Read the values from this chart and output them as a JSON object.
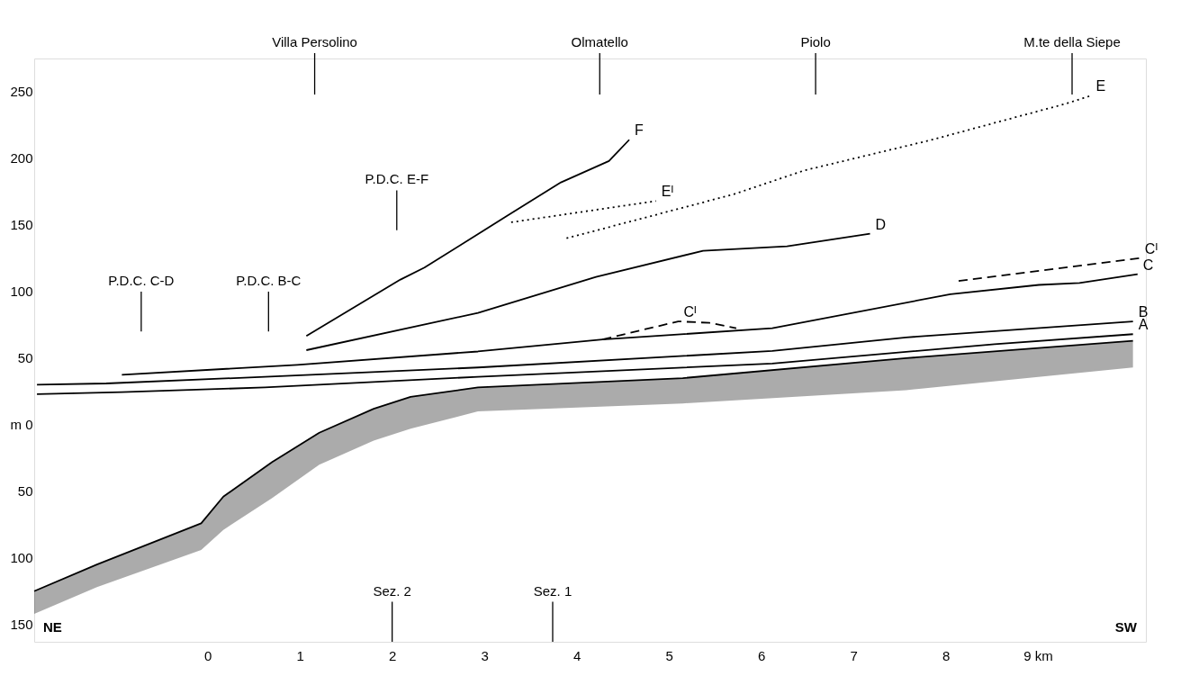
{
  "chart_data": {
    "type": "line",
    "xlim": [
      -1.88,
      10.17
    ],
    "ylim": [
      -163,
      275
    ],
    "xticks": [
      0,
      1,
      2,
      3,
      4,
      5,
      6,
      7,
      8,
      {
        "value": 9,
        "label": "9 km"
      }
    ],
    "yticks": [
      {
        "value": -150,
        "label": "150"
      },
      {
        "value": -100,
        "label": "100"
      },
      {
        "value": -50,
        "label": "50"
      },
      {
        "value": 0,
        "label": "m 0"
      },
      50,
      100,
      150,
      200,
      250
    ],
    "grid": false,
    "legend": false,
    "marker": "none",
    "series": [
      {
        "color": "#000000",
        "line_style": "solid",
        "x": [
          -1.88,
          -1.2,
          -0.07,
          0.17,
          0.7,
          1.21,
          1.8,
          2.2,
          2.93,
          5.15,
          7.57,
          10.03
        ],
        "values": [
          -125,
          -105,
          -74,
          -54,
          -28,
          -6,
          12,
          21,
          28,
          35,
          50,
          63
        ],
        "upper": [
          -125,
          -105,
          -74,
          -54,
          -28,
          -6,
          12,
          21,
          28,
          35,
          50,
          63
        ],
        "lower": [
          -142,
          -122,
          -94,
          -79,
          -55,
          -30,
          -12,
          -3,
          10,
          16,
          26,
          43
        ]
      },
      {
        "name": "A",
        "color": "#000000",
        "line_style": "solid",
        "x": [
          -1.85,
          -0.93,
          0.62,
          2.93,
          6.12,
          8.53,
          10.03
        ],
        "values": [
          23,
          24.5,
          28,
          36,
          46,
          60.5,
          68
        ]
      },
      {
        "name": "B",
        "color": "#000000",
        "line_style": "solid",
        "x": [
          -1.85,
          -1.1,
          0.62,
          2.93,
          6.12,
          7.57,
          10.03
        ],
        "values": [
          30,
          31,
          36,
          43,
          55.4,
          65.6,
          77.6
        ]
      },
      {
        "name": "C",
        "color": "#000000",
        "line_style": "solid",
        "x": [
          -0.93,
          0.97,
          2.93,
          4.28,
          6.12,
          8.05,
          9.01,
          9.45,
          10.08
        ],
        "values": [
          37.5,
          45,
          55,
          64,
          72.5,
          98,
          105,
          106.5,
          113
        ]
      },
      {
        "name": "Cᴵ",
        "color": "#000000",
        "line_style": "dashed",
        "x": [
          4.28,
          5.1,
          5.44,
          5.73
        ],
        "values": [
          64,
          77.6,
          76.5,
          72.5
        ]
      },
      {
        "name": "Cᴵ",
        "color": "#000000",
        "line_style": "dashed",
        "x": [
          8.14,
          10.1
        ],
        "values": [
          108,
          125
        ]
      },
      {
        "name": "D",
        "color": "#000000",
        "line_style": "solid",
        "x": [
          1.07,
          2.93,
          4.21,
          5.37,
          6.28,
          7.18
        ],
        "values": [
          56,
          84,
          111,
          130.6,
          134,
          143.5
        ]
      },
      {
        "name": "Eᴵ",
        "color": "#000000",
        "line_style": "dotted",
        "x": [
          3.29,
          4.86
        ],
        "values": [
          152,
          168
        ]
      },
      {
        "name": "E",
        "color": "#000000",
        "line_style": "dotted",
        "x": [
          3.89,
          5.7,
          6.47,
          7.83,
          9.3,
          9.57
        ],
        "values": [
          140,
          173,
          191,
          213.6,
          241,
          247
        ]
      },
      {
        "name": "F",
        "color": "#000000",
        "line_style": "solid",
        "x": [
          1.07,
          2.09,
          2.35,
          3.25,
          3.83,
          4.35,
          4.57
        ],
        "values": [
          66.7,
          109,
          118,
          157,
          182,
          198,
          214
        ]
      }
    ],
    "ref_lines": [
      {
        "axis": "x",
        "value": 1.16,
        "label": "Villa Persolino"
      },
      {
        "axis": "x",
        "value": 4.25,
        "label": "Olmatello"
      },
      {
        "axis": "x",
        "value": 6.59,
        "label": "Piolo"
      },
      {
        "axis": "x",
        "value": 9.37,
        "label": "M.te della Siepe"
      },
      {
        "axis": "x",
        "value": 2.05,
        "label": "P.D.C. E-F"
      },
      {
        "axis": "x",
        "value": -0.72,
        "label": "P.D.C. C-D"
      },
      {
        "axis": "x",
        "value": 0.66,
        "label": "P.D.C. B-C"
      },
      {
        "axis": "x",
        "value": 2,
        "label": "Sez. 2"
      },
      {
        "axis": "x",
        "value": 3.74,
        "label": "Sez. 1"
      }
    ],
    "annotations": [
      "NE",
      "SW"
    ]
  }
}
